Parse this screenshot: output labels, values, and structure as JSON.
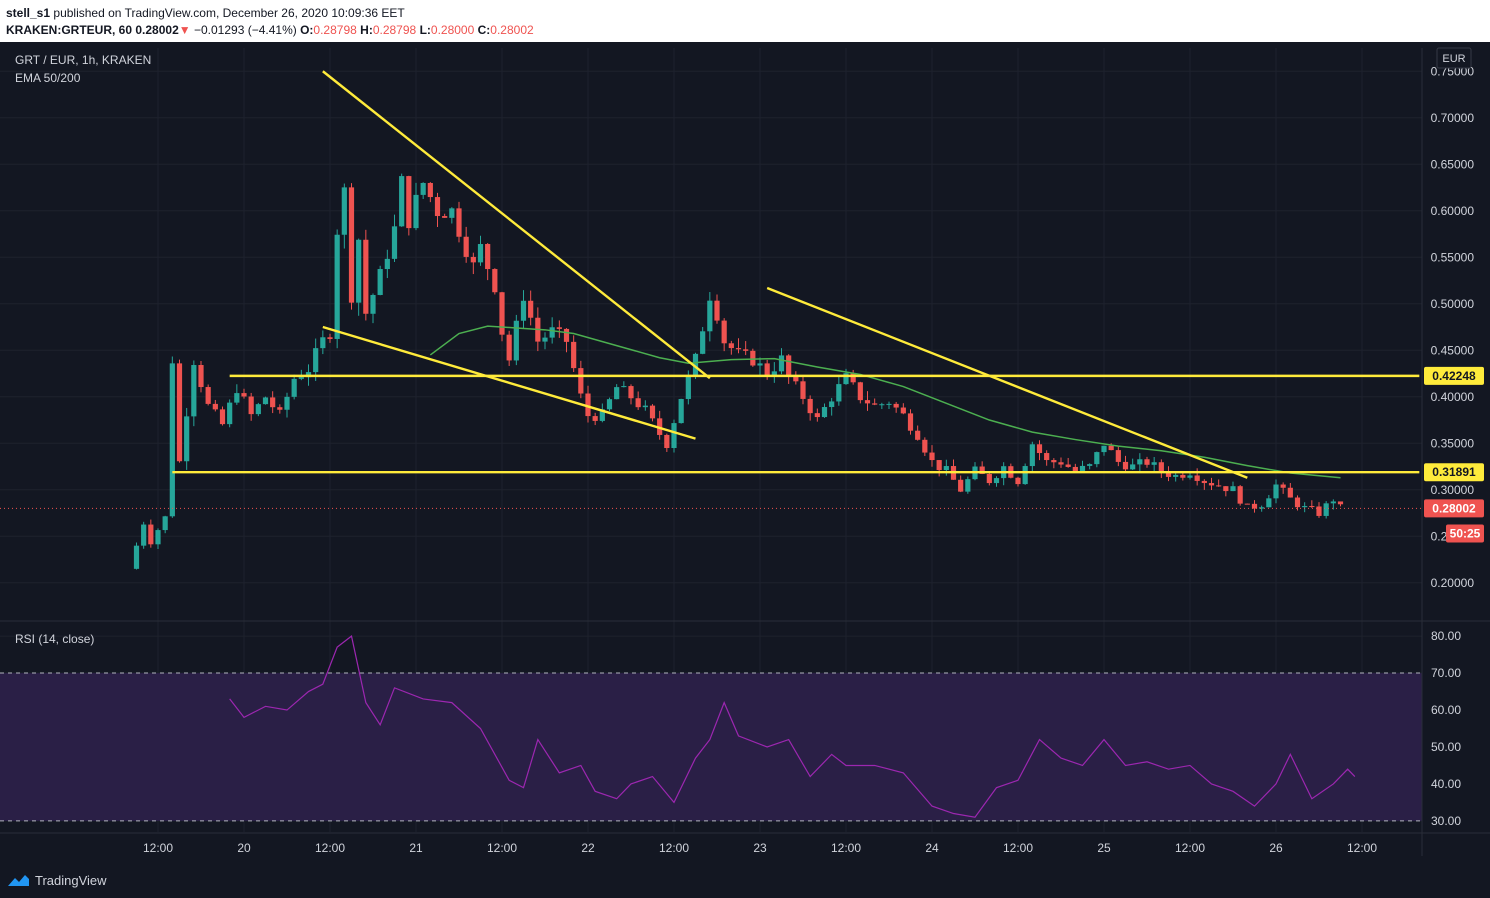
{
  "header": {
    "publisher": "stell_s1",
    "published_text": "published on TradingView.com, December 26, 2020 10:09:36 EET",
    "symbol": "KRAKEN:GRTEUR, 60",
    "last": "0.28002",
    "change": "−0.01293 (−4.41%)",
    "o_label": "O:",
    "o_value": "0.28798",
    "h_label": "H:",
    "h_value": "0.28798",
    "l_label": "L:",
    "l_value": "0.28000",
    "c_label": "C:",
    "c_value": "0.28002"
  },
  "legend": {
    "pair": "GRT / EUR, 1h, KRAKEN",
    "indicator": "EMA 50/200",
    "rsi": "RSI (14, close)"
  },
  "currency_button": "EUR",
  "footer_brand": "TradingView",
  "colors": {
    "background": "#131722",
    "up_candle": "#26a69a",
    "down_candle": "#ef5350",
    "ema": "#4caf50",
    "trendline": "#ffeb3b",
    "rsi_line": "#9c27b0",
    "rsi_band": "#2a1f46"
  },
  "chart_data": [
    {
      "type": "candlestick",
      "title": "GRT / EUR, 1h, KRAKEN",
      "y_axis": {
        "range": [
          0.16,
          0.775
        ],
        "ticks": [
          "0.20000",
          "0.25000",
          "0.30000",
          "0.35000",
          "0.40000",
          "0.45000",
          "0.50000",
          "0.55000",
          "0.60000",
          "0.65000",
          "0.70000",
          "0.75000"
        ],
        "tick_values": [
          0.2,
          0.25,
          0.3,
          0.35,
          0.4,
          0.45,
          0.5,
          0.55,
          0.6,
          0.65,
          0.7,
          0.75
        ]
      },
      "x_axis": {
        "start": "2020-12-19T08:00",
        "end": "2020-12-26T20:00",
        "ticks": [
          "12:00",
          "20",
          "12:00",
          "21",
          "12:00",
          "22",
          "12:00",
          "23",
          "12:00",
          "24",
          "12:00",
          "25",
          "12:00",
          "26",
          "12:00"
        ],
        "tick_times": [
          "2020-12-19T12:00",
          "2020-12-20T00:00",
          "2020-12-20T12:00",
          "2020-12-21T00:00",
          "2020-12-21T12:00",
          "2020-12-22T00:00",
          "2020-12-22T12:00",
          "2020-12-23T00:00",
          "2020-12-23T12:00",
          "2020-12-24T00:00",
          "2020-12-24T12:00",
          "2020-12-25T00:00",
          "2020-12-25T12:00",
          "2020-12-26T00:00",
          "2020-12-26T12:00"
        ]
      },
      "price_path": [
        [
          "2020-12-19T08:00",
          0.215
        ],
        [
          "2020-12-19T10:00",
          0.265
        ],
        [
          "2020-12-19T11:00",
          0.245
        ],
        [
          "2020-12-19T13:00",
          0.27
        ],
        [
          "2020-12-19T14:00",
          0.44
        ],
        [
          "2020-12-19T15:00",
          0.33
        ],
        [
          "2020-12-19T17:00",
          0.44
        ],
        [
          "2020-12-19T19:00",
          0.39
        ],
        [
          "2020-12-19T21:00",
          0.37
        ],
        [
          "2020-12-19T23:00",
          0.41
        ],
        [
          "2020-12-20T01:00",
          0.38
        ],
        [
          "2020-12-20T03:00",
          0.4
        ],
        [
          "2020-12-20T05:00",
          0.38
        ],
        [
          "2020-12-20T07:00",
          0.42
        ],
        [
          "2020-12-20T09:00",
          0.43
        ],
        [
          "2020-12-20T11:00",
          0.46
        ],
        [
          "2020-12-20T12:00",
          0.47
        ],
        [
          "2020-12-20T13:00",
          0.58
        ],
        [
          "2020-12-20T14:00",
          0.62
        ],
        [
          "2020-12-20T15:00",
          0.51
        ],
        [
          "2020-12-20T16:00",
          0.57
        ],
        [
          "2020-12-20T17:00",
          0.49
        ],
        [
          "2020-12-20T19:00",
          0.53
        ],
        [
          "2020-12-20T21:00",
          0.58
        ],
        [
          "2020-12-20T22:00",
          0.63
        ],
        [
          "2020-12-20T23:00",
          0.59
        ],
        [
          "2020-12-21T01:00",
          0.63
        ],
        [
          "2020-12-21T03:00",
          0.6
        ],
        [
          "2020-12-21T05:00",
          0.6
        ],
        [
          "2020-12-21T07:00",
          0.56
        ],
        [
          "2020-12-21T08:00",
          0.54
        ],
        [
          "2020-12-21T09:00",
          0.56
        ],
        [
          "2020-12-21T11:00",
          0.52
        ],
        [
          "2020-12-21T12:00",
          0.47
        ],
        [
          "2020-12-21T13:00",
          0.44
        ],
        [
          "2020-12-21T15:00",
          0.51
        ],
        [
          "2020-12-21T17:00",
          0.46
        ],
        [
          "2020-12-21T19:00",
          0.47
        ],
        [
          "2020-12-21T21:00",
          0.46
        ],
        [
          "2020-12-21T23:00",
          0.4
        ],
        [
          "2020-12-22T00:00",
          0.38
        ],
        [
          "2020-12-22T02:00",
          0.38
        ],
        [
          "2020-12-22T04:00",
          0.41
        ],
        [
          "2020-12-22T06:00",
          0.4
        ],
        [
          "2020-12-22T08:00",
          0.385
        ],
        [
          "2020-12-22T10:00",
          0.36
        ],
        [
          "2020-12-22T11:00",
          0.35
        ],
        [
          "2020-12-22T13:00",
          0.4
        ],
        [
          "2020-12-22T15:00",
          0.44
        ],
        [
          "2020-12-22T17:00",
          0.51
        ],
        [
          "2020-12-22T18:00",
          0.49
        ],
        [
          "2020-12-22T19:00",
          0.46
        ],
        [
          "2020-12-22T21:00",
          0.445
        ],
        [
          "2020-12-22T23:00",
          0.44
        ],
        [
          "2020-12-23T01:00",
          0.425
        ],
        [
          "2020-12-23T03:00",
          0.44
        ],
        [
          "2020-12-23T04:00",
          0.42
        ],
        [
          "2020-12-23T06:00",
          0.4
        ],
        [
          "2020-12-23T08:00",
          0.375
        ],
        [
          "2020-12-23T10:00",
          0.4
        ],
        [
          "2020-12-23T12:00",
          0.42
        ],
        [
          "2020-12-23T14:00",
          0.4
        ],
        [
          "2020-12-23T16:00",
          0.39
        ],
        [
          "2020-12-23T18:00",
          0.395
        ],
        [
          "2020-12-23T20:00",
          0.38
        ],
        [
          "2020-12-23T22:00",
          0.36
        ],
        [
          "2020-12-24T00:00",
          0.33
        ],
        [
          "2020-12-24T02:00",
          0.32
        ],
        [
          "2020-12-24T04:00",
          0.3
        ],
        [
          "2020-12-24T06:00",
          0.32
        ],
        [
          "2020-12-24T08:00",
          0.31
        ],
        [
          "2020-12-24T10:00",
          0.325
        ],
        [
          "2020-12-24T12:00",
          0.31
        ],
        [
          "2020-12-24T14:00",
          0.35
        ],
        [
          "2020-12-24T16:00",
          0.33
        ],
        [
          "2020-12-24T18:00",
          0.33
        ],
        [
          "2020-12-24T20:00",
          0.32
        ],
        [
          "2020-12-24T22:00",
          0.325
        ],
        [
          "2020-12-25T00:00",
          0.35
        ],
        [
          "2020-12-25T02:00",
          0.33
        ],
        [
          "2020-12-25T04:00",
          0.325
        ],
        [
          "2020-12-25T06:00",
          0.33
        ],
        [
          "2020-12-25T08:00",
          0.32
        ],
        [
          "2020-12-25T10:00",
          0.315
        ],
        [
          "2020-12-25T12:00",
          0.32
        ],
        [
          "2020-12-25T14:00",
          0.31
        ],
        [
          "2020-12-25T16:00",
          0.305
        ],
        [
          "2020-12-25T18:00",
          0.3
        ],
        [
          "2020-12-25T20:00",
          0.28
        ],
        [
          "2020-12-25T22:00",
          0.285
        ],
        [
          "2020-12-26T00:00",
          0.305
        ],
        [
          "2020-12-26T02:00",
          0.29
        ],
        [
          "2020-12-26T04:00",
          0.28
        ],
        [
          "2020-12-26T06:00",
          0.275
        ],
        [
          "2020-12-26T08:00",
          0.29
        ],
        [
          "2020-12-26T09:00",
          0.28
        ]
      ],
      "ema_path": [
        [
          "2020-12-21T02:00",
          0.445
        ],
        [
          "2020-12-21T06:00",
          0.468
        ],
        [
          "2020-12-21T10:00",
          0.476
        ],
        [
          "2020-12-21T14:00",
          0.474
        ],
        [
          "2020-12-21T18:00",
          0.472
        ],
        [
          "2020-12-21T22:00",
          0.468
        ],
        [
          "2020-12-22T04:00",
          0.455
        ],
        [
          "2020-12-22T10:00",
          0.442
        ],
        [
          "2020-12-22T14:00",
          0.436
        ],
        [
          "2020-12-22T20:00",
          0.44
        ],
        [
          "2020-12-23T02:00",
          0.441
        ],
        [
          "2020-12-23T08:00",
          0.432
        ],
        [
          "2020-12-23T14:00",
          0.424
        ],
        [
          "2020-12-23T20:00",
          0.411
        ],
        [
          "2020-12-24T02:00",
          0.393
        ],
        [
          "2020-12-24T08:00",
          0.375
        ],
        [
          "2020-12-24T14:00",
          0.362
        ],
        [
          "2020-12-24T20:00",
          0.354
        ],
        [
          "2020-12-25T02:00",
          0.347
        ],
        [
          "2020-12-25T08:00",
          0.342
        ],
        [
          "2020-12-25T14:00",
          0.335
        ],
        [
          "2020-12-25T20:00",
          0.326
        ],
        [
          "2020-12-26T02:00",
          0.318
        ],
        [
          "2020-12-26T09:00",
          0.313
        ]
      ],
      "trendlines": [
        {
          "from": [
            "2020-12-20T11:00",
            0.75
          ],
          "to": [
            "2020-12-22T17:00",
            0.42
          ]
        },
        {
          "from": [
            "2020-12-20T11:00",
            0.475
          ],
          "to": [
            "2020-12-22T15:00",
            0.355
          ]
        },
        {
          "from": [
            "2020-12-23T01:00",
            0.517
          ],
          "to": [
            "2020-12-25T20:00",
            0.313
          ]
        },
        {
          "from": [
            "2020-12-19T14:00",
            0.31891
          ],
          "to": [
            "2020-12-26T20:00",
            0.31891
          ]
        },
        {
          "from": [
            "2020-12-19T22:00",
            0.42248
          ],
          "to": [
            "2020-12-26T20:00",
            0.42248
          ]
        }
      ],
      "price_labels": [
        {
          "value": "0.42248",
          "level": 0.42248,
          "style": "yellow"
        },
        {
          "value": "0.31891",
          "level": 0.31891,
          "style": "yellow"
        },
        {
          "value": "0.28002",
          "level": 0.28002,
          "style": "red"
        },
        {
          "value": "50:25",
          "level": 0.253,
          "style": "red"
        }
      ]
    },
    {
      "type": "line",
      "title": "RSI (14, close)",
      "y_axis": {
        "range": [
          27,
          83
        ],
        "ticks": [
          "30.00",
          "40.00",
          "50.00",
          "60.00",
          "70.00",
          "80.00"
        ],
        "tick_values": [
          30,
          40,
          50,
          60,
          70,
          80
        ]
      },
      "band": [
        30,
        70
      ],
      "values": [
        [
          "2020-12-19T22:00",
          63
        ],
        [
          "2020-12-20T00:00",
          58
        ],
        [
          "2020-12-20T03:00",
          61
        ],
        [
          "2020-12-20T06:00",
          60
        ],
        [
          "2020-12-20T09:00",
          65
        ],
        [
          "2020-12-20T11:00",
          67
        ],
        [
          "2020-12-20T13:00",
          77
        ],
        [
          "2020-12-20T15:00",
          80
        ],
        [
          "2020-12-20T17:00",
          62
        ],
        [
          "2020-12-20T19:00",
          56
        ],
        [
          "2020-12-20T21:00",
          66
        ],
        [
          "2020-12-21T01:00",
          63
        ],
        [
          "2020-12-21T05:00",
          62
        ],
        [
          "2020-12-21T09:00",
          55
        ],
        [
          "2020-12-21T13:00",
          41
        ],
        [
          "2020-12-21T15:00",
          39
        ],
        [
          "2020-12-21T17:00",
          52
        ],
        [
          "2020-12-21T20:00",
          43
        ],
        [
          "2020-12-21T23:00",
          45
        ],
        [
          "2020-12-22T01:00",
          38
        ],
        [
          "2020-12-22T04:00",
          36
        ],
        [
          "2020-12-22T06:00",
          40
        ],
        [
          "2020-12-22T09:00",
          42
        ],
        [
          "2020-12-22T12:00",
          35
        ],
        [
          "2020-12-22T15:00",
          47
        ],
        [
          "2020-12-22T17:00",
          52
        ],
        [
          "2020-12-22T19:00",
          62
        ],
        [
          "2020-12-22T21:00",
          53
        ],
        [
          "2020-12-23T01:00",
          50
        ],
        [
          "2020-12-23T04:00",
          52
        ],
        [
          "2020-12-23T07:00",
          42
        ],
        [
          "2020-12-23T10:00",
          48
        ],
        [
          "2020-12-23T12:00",
          45
        ],
        [
          "2020-12-23T16:00",
          45
        ],
        [
          "2020-12-23T20:00",
          43
        ],
        [
          "2020-12-24T00:00",
          34
        ],
        [
          "2020-12-24T03:00",
          32
        ],
        [
          "2020-12-24T06:00",
          31
        ],
        [
          "2020-12-24T09:00",
          39
        ],
        [
          "2020-12-24T12:00",
          41
        ],
        [
          "2020-12-24T15:00",
          52
        ],
        [
          "2020-12-24T18:00",
          47
        ],
        [
          "2020-12-24T21:00",
          45
        ],
        [
          "2020-12-25T00:00",
          52
        ],
        [
          "2020-12-25T03:00",
          45
        ],
        [
          "2020-12-25T06:00",
          46
        ],
        [
          "2020-12-25T09:00",
          44
        ],
        [
          "2020-12-25T12:00",
          45
        ],
        [
          "2020-12-25T15:00",
          40
        ],
        [
          "2020-12-25T18:00",
          38
        ],
        [
          "2020-12-25T21:00",
          34
        ],
        [
          "2020-12-26T00:00",
          40
        ],
        [
          "2020-12-26T02:00",
          48
        ],
        [
          "2020-12-26T05:00",
          36
        ],
        [
          "2020-12-26T08:00",
          40
        ],
        [
          "2020-12-26T10:00",
          44
        ],
        [
          "2020-12-26T11:00",
          42
        ]
      ]
    }
  ]
}
